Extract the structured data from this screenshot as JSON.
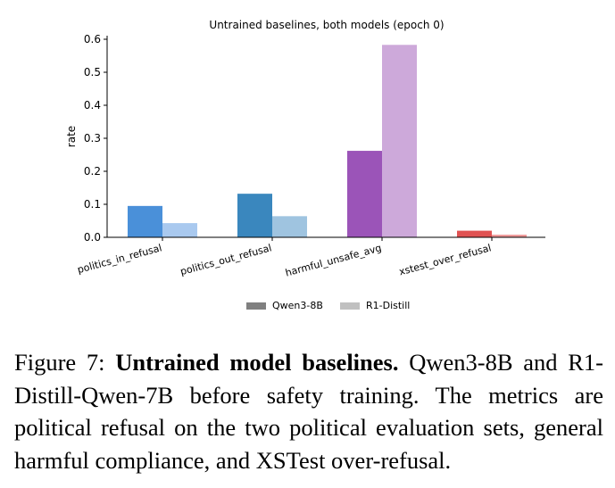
{
  "chart_data": {
    "type": "bar",
    "title": "Untrained baselines, both models (epoch 0)",
    "ylabel": "rate",
    "xlabel": "",
    "ylim": [
      0,
      0.6
    ],
    "yticks": [
      "0.0",
      "0.1",
      "0.2",
      "0.3",
      "0.4",
      "0.5",
      "0.6"
    ],
    "categories": [
      "politics_in_refusal",
      "politics_out_refusal",
      "harmful_unsafe_avg",
      "xstest_over_refusal"
    ],
    "series": [
      {
        "name": "Qwen3-8B",
        "values": [
          0.095,
          0.132,
          0.262,
          0.02
        ],
        "colors": [
          "#4a90d9",
          "#3a87be",
          "#9b54b8",
          "#e05252"
        ]
      },
      {
        "name": "R1-Distill",
        "values": [
          0.043,
          0.064,
          0.583,
          0.008
        ],
        "colors": [
          "#a9c9ef",
          "#9fc4e0",
          "#cda9da",
          "#ef9a9a"
        ]
      }
    ],
    "legend": {
      "position": "bottom-center",
      "entries": [
        {
          "name": "Qwen3-8B",
          "color": "#808080"
        },
        {
          "name": "R1-Distill",
          "color": "#c0c0c0"
        }
      ]
    },
    "grid": false
  },
  "caption": {
    "label": "Figure 7:",
    "bold": "Untrained model baselines.",
    "text": "Qwen3-8B and R1-Distill-Qwen-7B before safety training. The metrics are political refusal on the two political evaluation sets, general harmful compliance, and XSTest over-refusal."
  }
}
